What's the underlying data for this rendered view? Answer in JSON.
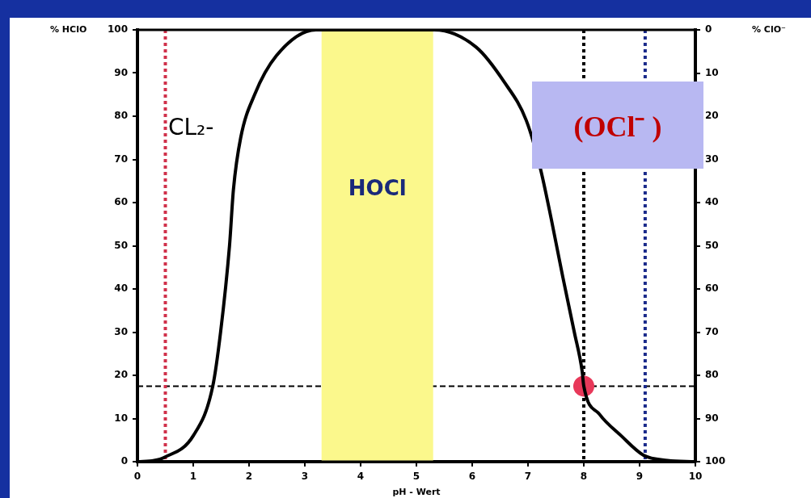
{
  "chart_data": {
    "type": "line",
    "xlabel": "pH - Wert",
    "ylabel": "% HClO",
    "y2label": "% ClO⁻",
    "xlim": [
      0,
      10
    ],
    "xticks": [
      0,
      1,
      2,
      3,
      4,
      5,
      6,
      7,
      8,
      9,
      10
    ],
    "ylim": [
      0,
      100
    ],
    "yticks": [
      0,
      10,
      20,
      30,
      40,
      50,
      60,
      70,
      80,
      90,
      100
    ],
    "y2lim": [
      100,
      0
    ],
    "y2ticks": [
      0,
      10,
      20,
      30,
      40,
      50,
      60,
      70,
      80,
      90,
      100
    ],
    "grid": false,
    "legend": false,
    "series": [
      {
        "color": "#000000",
        "marker": "none",
        "line_style": "solid",
        "x": [
          0,
          0.3,
          0.48,
          1.0,
          1.35,
          1.49,
          1.65,
          1.72,
          1.85,
          2.1,
          2.49,
          3.2,
          5.32,
          6.07,
          6.57,
          6.97,
          7.22,
          7.42,
          7.62,
          7.83,
          7.97,
          8.0,
          8.28,
          8.67,
          9.07,
          9.5,
          10
        ],
        "values": [
          0,
          0.3,
          1,
          6,
          17.5,
          30,
          50,
          63,
          75,
          85,
          94,
          100,
          100,
          96,
          88,
          79,
          68,
          56,
          43,
          30,
          21,
          17.5,
          11,
          6,
          1.5,
          0.3,
          0
        ]
      },
      {
        "type": "scatter",
        "color": "#e8395a",
        "marker": "circle",
        "x": [
          8
        ],
        "values": [
          17.5
        ]
      }
    ],
    "ref_lines": [
      {
        "axis": "y",
        "value": 17.5,
        "color": "#000000",
        "line_style": "dashed"
      },
      {
        "axis": "x",
        "value": 0.5,
        "color": "#d0304a",
        "line_style": "dotted"
      },
      {
        "axis": "x",
        "value": 8,
        "color": "#000000",
        "line_style": "dotted"
      },
      {
        "axis": "x",
        "value": 9.1,
        "color": "#1a2a8a",
        "line_style": "dotted"
      }
    ],
    "bands": [
      {
        "axis": "x",
        "from": 3.3,
        "to": 5.3,
        "label": "HOCl",
        "color": "#fbf88c"
      }
    ],
    "annotations": [
      {
        "text": "CL₂-",
        "x": 0.55,
        "y": 77
      },
      "(OCl⁻ )"
    ]
  }
}
